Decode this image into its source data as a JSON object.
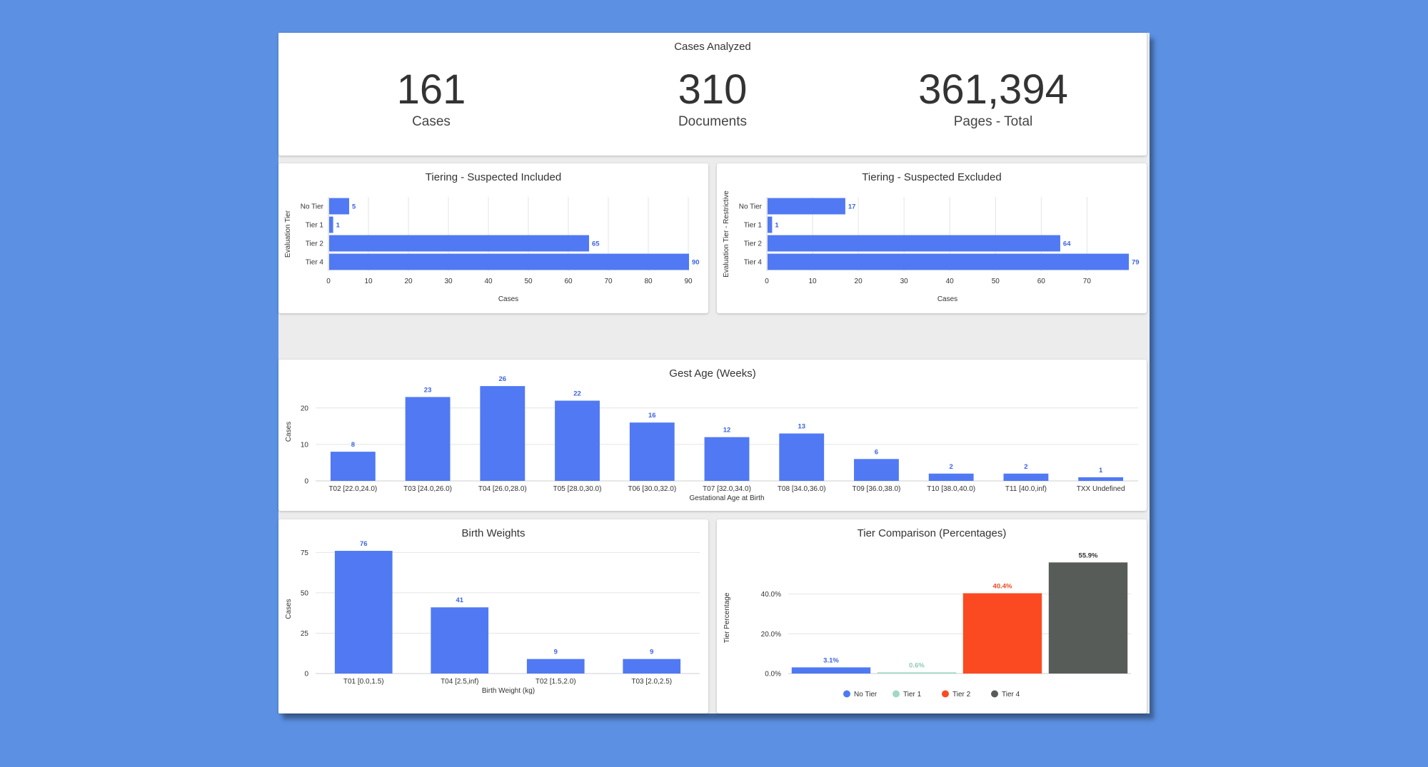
{
  "summary": {
    "title": "Cases Analyzed",
    "stats": [
      {
        "value": "161",
        "label": "Cases"
      },
      {
        "value": "310",
        "label": "Documents"
      },
      {
        "value": "361,394",
        "label": "Pages - Total"
      }
    ]
  },
  "colors": {
    "bar": "#5079f3",
    "label": "#3d64e0",
    "grid": "#e4e4e4",
    "axis": "#cfcfcf",
    "text": "#333333"
  },
  "chart_data": [
    {
      "id": "included",
      "type": "bar",
      "orientation": "horizontal",
      "title": "Tiering - Suspected Included",
      "categories": [
        "No Tier",
        "Tier 1",
        "Tier 2",
        "Tier 4"
      ],
      "values": [
        5,
        1,
        65,
        90
      ],
      "xlabel": "Cases",
      "ylabel": "Evaluation Tier",
      "xlim": [
        0,
        90
      ],
      "ticks": [
        0,
        10,
        20,
        30,
        40,
        50,
        60,
        70,
        80,
        90
      ]
    },
    {
      "id": "excluded",
      "type": "bar",
      "orientation": "horizontal",
      "title": "Tiering - Suspected Excluded",
      "categories": [
        "No Tier",
        "Tier 1",
        "Tier 2",
        "Tier 4"
      ],
      "values": [
        17,
        1,
        64,
        79
      ],
      "xlabel": "Cases",
      "ylabel": "Evaluation Tier - Restrictive",
      "xlim": [
        0,
        79
      ],
      "ticks": [
        0,
        10,
        20,
        30,
        40,
        50,
        60,
        70
      ]
    },
    {
      "id": "gest",
      "type": "bar",
      "title": "Gest Age (Weeks)",
      "categories": [
        "T02 [22.0,24.0)",
        "T03 [24.0,26.0)",
        "T04 [26.0,28.0)",
        "T05 [28.0,30.0)",
        "T06 [30.0,32.0)",
        "T07 [32.0,34.0)",
        "T08 [34.0,36.0)",
        "T09 [36.0,38.0)",
        "T10 [38.0,40.0)",
        "T11 [40.0,inf)",
        "TXX Undefined"
      ],
      "values": [
        8,
        23,
        26,
        22,
        16,
        12,
        13,
        6,
        2,
        2,
        1
      ],
      "xlabel": "Gestational Age at Birth",
      "ylabel": "Cases",
      "ylim": [
        0,
        27
      ],
      "ticks": [
        0,
        10,
        20
      ]
    },
    {
      "id": "birth",
      "type": "bar",
      "title": "Birth Weights",
      "categories": [
        "T01 [0.0,1.5)",
        "T04 [2.5,inf)",
        "T02 [1.5,2.0)",
        "T03 [2.0,2.5)"
      ],
      "values": [
        76,
        41,
        9,
        9
      ],
      "xlabel": "Birth Weight (kg)",
      "ylabel": "Cases",
      "ylim": [
        0,
        80
      ],
      "ticks": [
        0,
        25,
        50,
        75
      ]
    },
    {
      "id": "tier",
      "type": "bar",
      "title": "Tier Comparison (Percentages)",
      "categories": [
        "No Tier",
        "Tier 1",
        "Tier 2",
        "Tier 4"
      ],
      "values": [
        3.1,
        0.6,
        40.4,
        55.9
      ],
      "value_labels": [
        "3.1%",
        "0.6%",
        "40.4%",
        "55.9%"
      ],
      "series_colors": [
        "#4f79f2",
        "#9fd9c2",
        "#fb4a22",
        "#585c58"
      ],
      "label_colors": [
        "#3d64e0",
        "#8ecbb3",
        "#f04a25",
        "#333333"
      ],
      "ylabel": "Tier Percentage",
      "ylim": [
        0,
        56
      ],
      "ticks": [
        0,
        20,
        40
      ],
      "tick_labels": [
        "0.0%",
        "20.0%",
        "40.0%"
      ],
      "legend": [
        "No Tier",
        "Tier 1",
        "Tier 2",
        "Tier 4"
      ],
      "legend_position": "bottom"
    }
  ]
}
